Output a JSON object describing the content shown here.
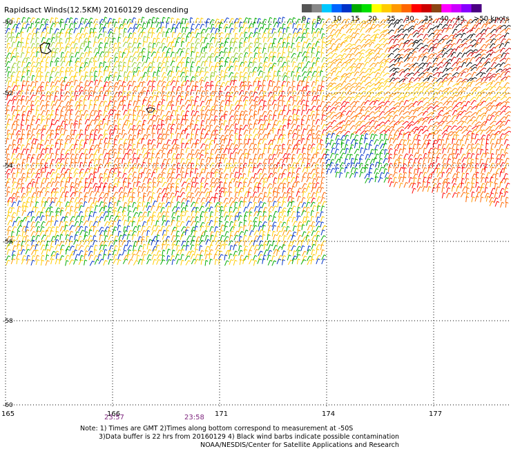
{
  "title": "Rapidsact Winds(12.5KM) 20160129 descending",
  "legend": {
    "colors": [
      "#555555",
      "#888888",
      "#00c8ff",
      "#0064ff",
      "#0032c8",
      "#00aa00",
      "#00e000",
      "#ffff00",
      "#ffcc00",
      "#ff9900",
      "#ff6600",
      "#ff0000",
      "#cc0000",
      "#8b4513",
      "#ff00ff",
      "#cc00ff",
      "#8800ff",
      "#4b0082"
    ],
    "ticks": [
      "0",
      "5",
      "10",
      "15",
      "20",
      "25",
      "30",
      "35",
      "40",
      "45",
      ">50 knots"
    ]
  },
  "chart_data": {
    "type": "wind-barb map",
    "title": "Rapidsact Winds(12.5KM) 20160129 descending",
    "x_ticks": [
      "165",
      "166",
      "171",
      "174",
      "177"
    ],
    "y_ticks": [
      "-50",
      "-52",
      "-54",
      "-56",
      "-58",
      "-60"
    ],
    "times": [
      "23:57",
      "23:58"
    ],
    "grid": true
  },
  "notes": {
    "line1": "Note: 1) Times are GMT 2)Times along bottom correspond to measurement at -50S",
    "line2": "3)Data buffer is 22 hrs from 20160129 4) Black wind barbs indicate possible contamination",
    "line3": "NOAA/NESDIS/Center for Satellite Applications and Research"
  }
}
